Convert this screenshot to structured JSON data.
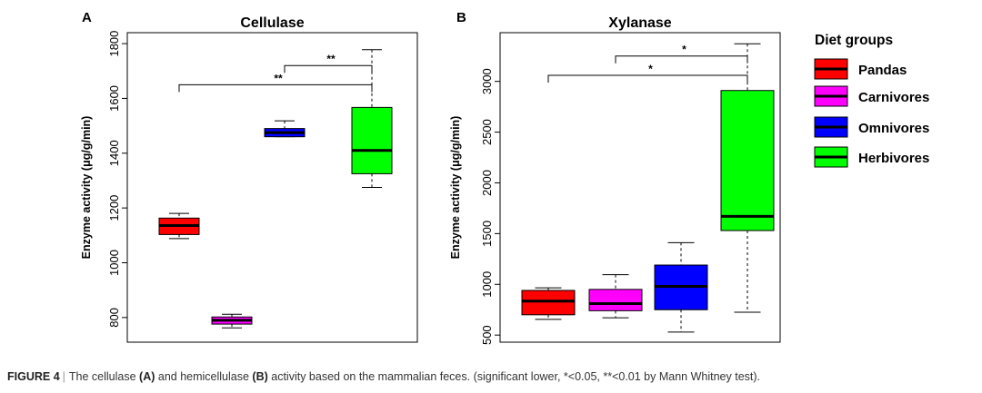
{
  "chart_data": [
    {
      "panel": "A",
      "type": "box",
      "title": "Cellulase",
      "ylabel": "Enzyme activity (μg/g/min)",
      "xlabel": "",
      "ylim": [
        710,
        1840
      ],
      "yticks": [
        800,
        1000,
        1200,
        1400,
        1600,
        1800
      ],
      "groups": [
        "Pandas",
        "Carnivores",
        "Omnivores",
        "Herbivores"
      ],
      "colors": [
        "#ff0000",
        "#ff00ff",
        "#0000ff",
        "#00ff00"
      ],
      "boxes": [
        {
          "group": "Pandas",
          "min": 1088,
          "q1": 1103,
          "median": 1136,
          "q3": 1163,
          "max": 1180
        },
        {
          "group": "Carnivores",
          "min": 762,
          "q1": 776,
          "median": 790,
          "q3": 802,
          "max": 812
        },
        {
          "group": "Omnivores",
          "min": 1460,
          "q1": 1460,
          "median": 1475,
          "q3": 1490,
          "max": 1518
        },
        {
          "group": "Herbivores",
          "min": 1275,
          "q1": 1325,
          "median": 1410,
          "q3": 1567,
          "max": 1778
        }
      ],
      "significance": [
        {
          "from": "Omnivores",
          "to": "Herbivores",
          "y": 1720,
          "label": "**"
        },
        {
          "from": "Pandas",
          "to": "Herbivores",
          "y": 1650,
          "label": "**"
        }
      ]
    },
    {
      "panel": "B",
      "type": "box",
      "title": "Xylanase",
      "ylabel": "Enzyme activity (μg/g/min)",
      "xlabel": "",
      "ylim": [
        430,
        3480
      ],
      "yticks": [
        500,
        1000,
        1500,
        2000,
        2500,
        3000
      ],
      "groups": [
        "Pandas",
        "Carnivores",
        "Omnivores",
        "Herbivores"
      ],
      "colors": [
        "#ff0000",
        "#ff00ff",
        "#0000ff",
        "#00ff00"
      ],
      "boxes": [
        {
          "group": "Pandas",
          "min": 655,
          "q1": 700,
          "median": 835,
          "q3": 940,
          "max": 965
        },
        {
          "group": "Carnivores",
          "min": 670,
          "q1": 740,
          "median": 810,
          "q3": 950,
          "max": 1095
        },
        {
          "group": "Omnivores",
          "min": 530,
          "q1": 750,
          "median": 980,
          "q3": 1190,
          "max": 1410
        },
        {
          "group": "Herbivores",
          "min": 725,
          "q1": 1530,
          "median": 1670,
          "q3": 2910,
          "max": 3370
        }
      ],
      "significance": [
        {
          "from": "Carnivores",
          "to": "Herbivores",
          "y": 3250,
          "label": "*"
        },
        {
          "from": "Pandas",
          "to": "Herbivores",
          "y": 3060,
          "label": "*"
        }
      ]
    }
  ],
  "legend": {
    "title": "Diet groups",
    "placement": "right",
    "items": [
      {
        "label": "Pandas",
        "color": "#ff0000"
      },
      {
        "label": "Carnivores",
        "color": "#ff00ff"
      },
      {
        "label": "Omnivores",
        "color": "#0000ff"
      },
      {
        "label": "Herbivores",
        "color": "#00ff00"
      }
    ]
  },
  "caption": {
    "label": "FIGURE 4",
    "t1": "The cellulase ",
    "a": "(A)",
    "t2": " and hemicellulase ",
    "b": "(B)",
    "t3": " activity based on the mammalian feces. (significant lower, *<0.05, **<0.01 by Mann Whitney test)."
  }
}
